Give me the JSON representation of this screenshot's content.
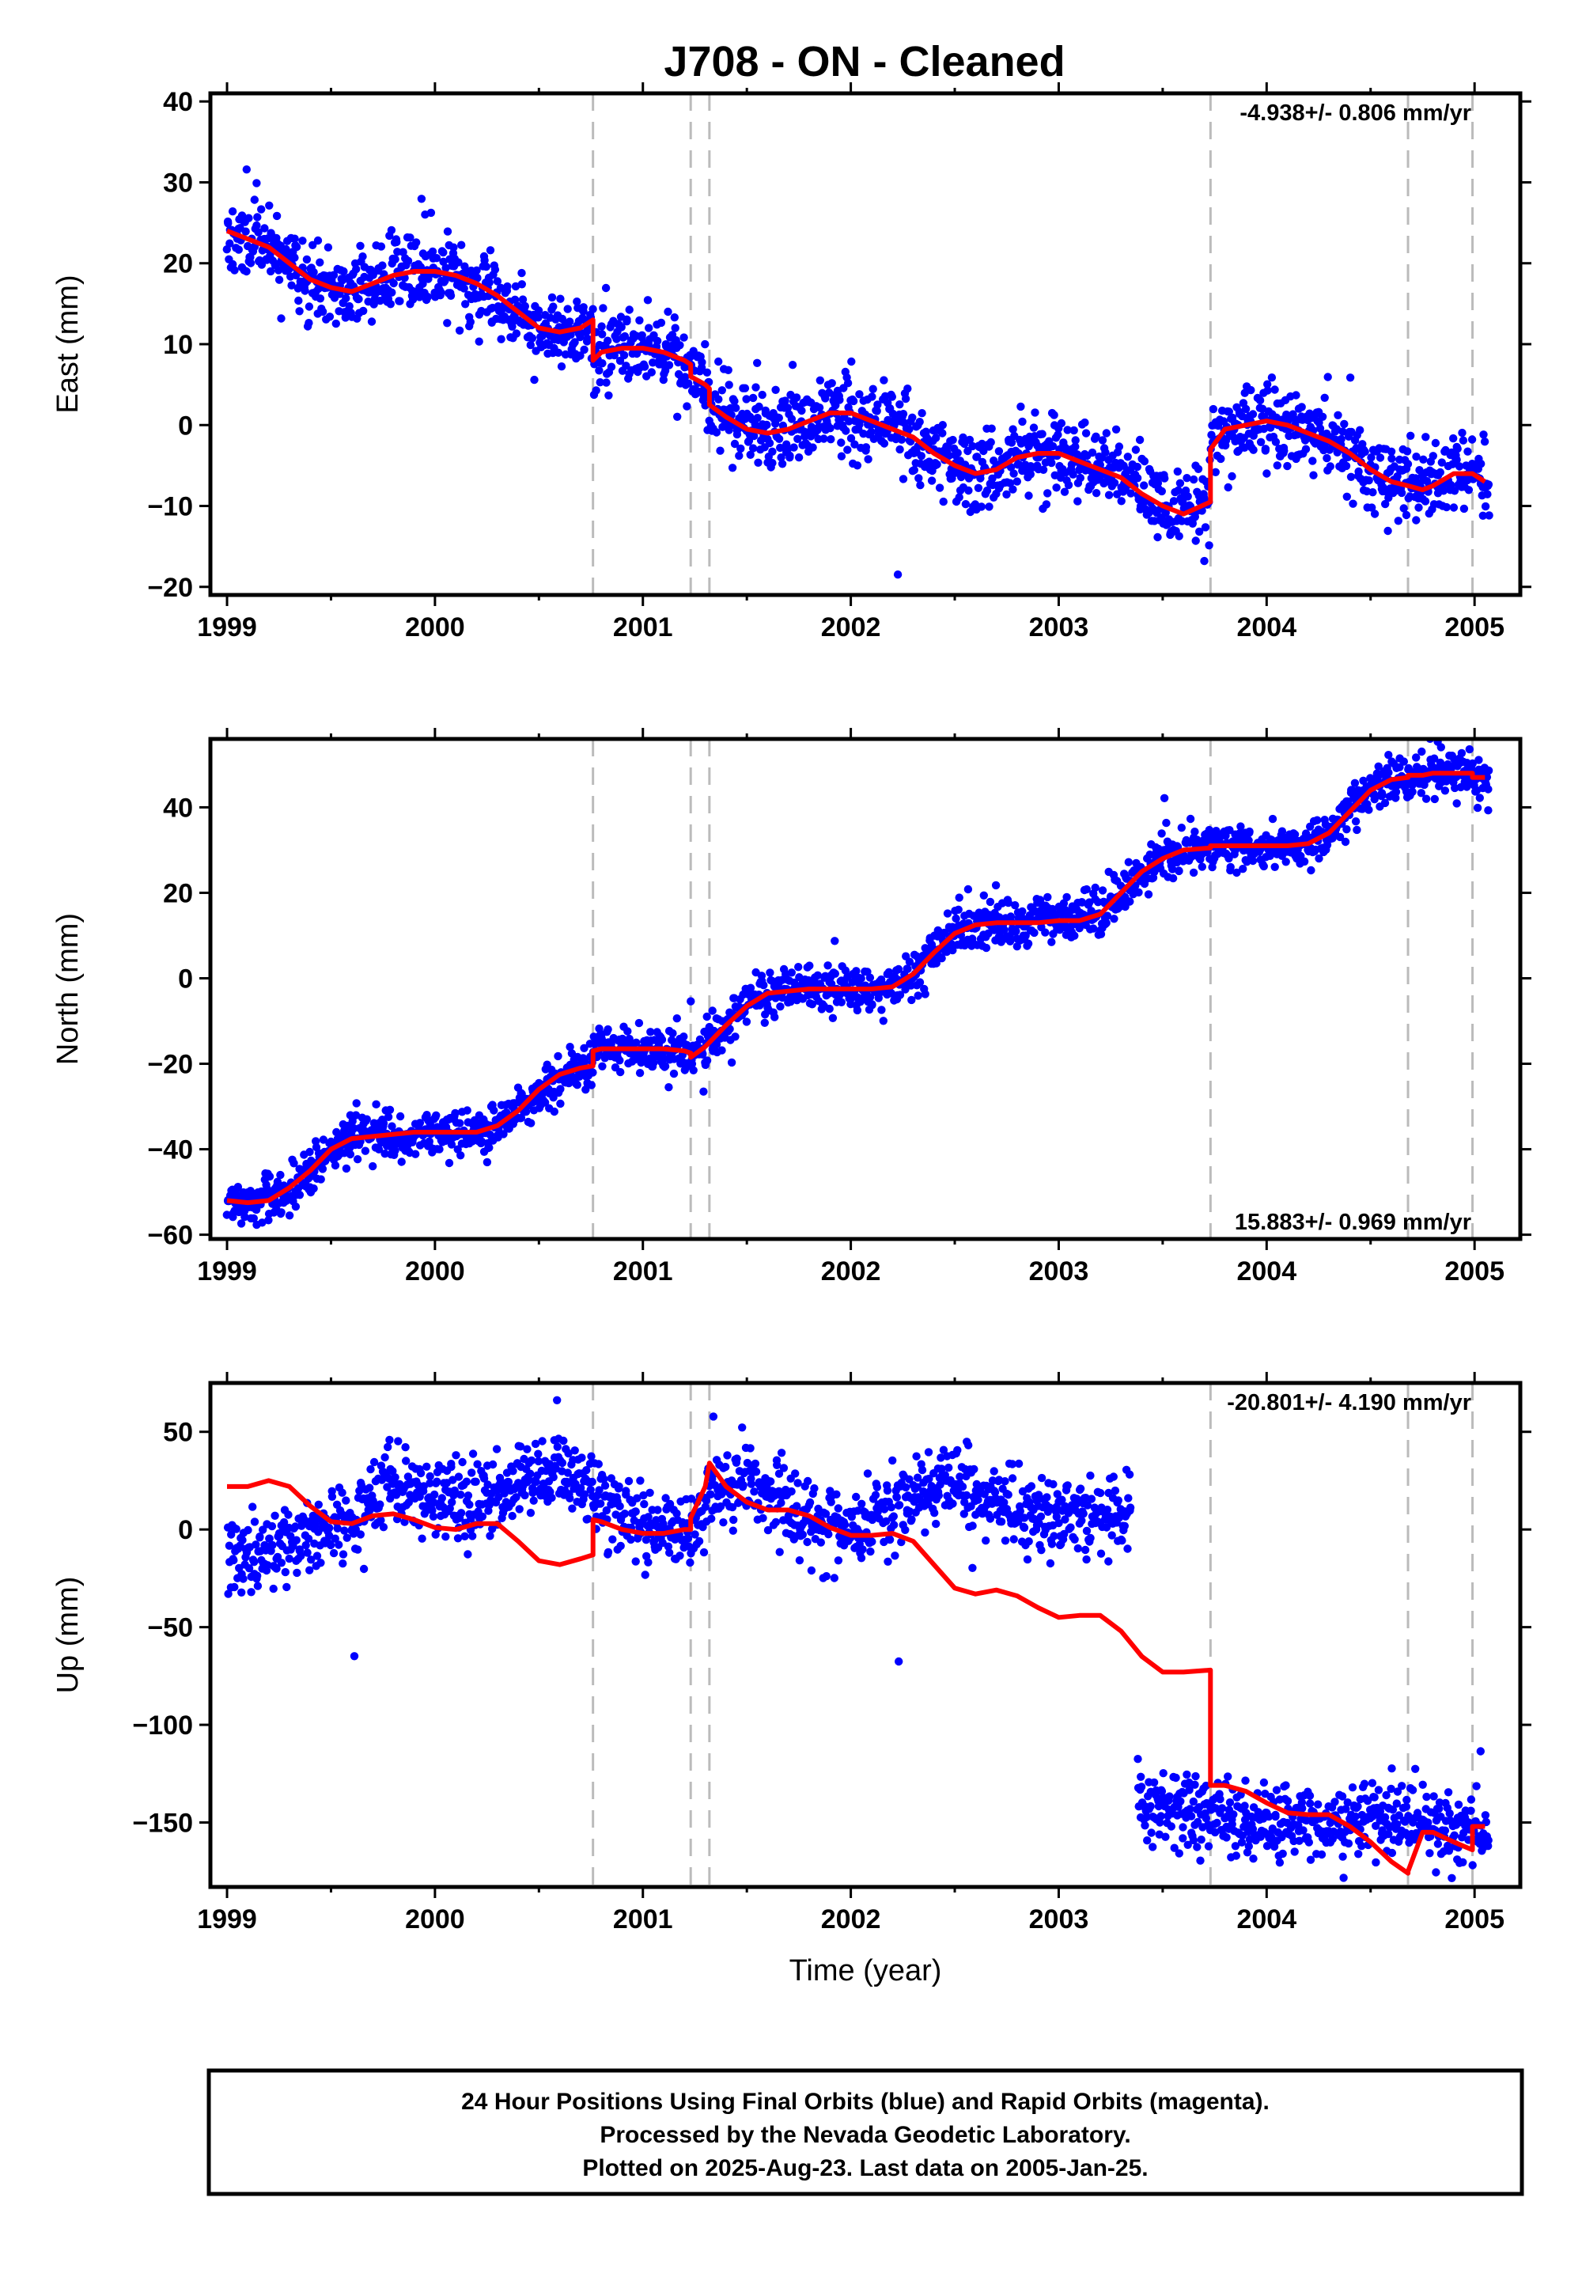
{
  "title": "J708  - ON - Cleaned",
  "colors": {
    "points": "#0000ff",
    "model": "#ff0000",
    "events": "#bbbbbb",
    "frame": "#000000"
  },
  "footer": {
    "lines": [
      "24 Hour Positions Using Final Orbits (blue) and Rapid Orbits (magenta).",
      "Processed by the Nevada Geodetic Laboratory.",
      "Plotted on 2025-Aug-23. Last data on 2005-Jan-25."
    ]
  },
  "chart_data": [
    {
      "type": "scatter",
      "panel": "east",
      "ylabel": "East (mm)",
      "xlabel": "",
      "xlim": [
        1998.92,
        2005.22
      ],
      "ylim": [
        -21,
        41
      ],
      "xticks": [
        1999,
        2000,
        2001,
        2002,
        2003,
        2004,
        2005
      ],
      "yticks": [
        -20,
        -10,
        0,
        10,
        20,
        30,
        40
      ],
      "rate_text": "-4.938+/- 0.806 mm/yr",
      "rate_position": "top-right",
      "events": [
        2000.76,
        2001.23,
        2001.32,
        2003.73,
        2004.68,
        2004.99
      ],
      "gap": null,
      "model": {
        "x": [
          1999.0,
          1999.1,
          1999.2,
          1999.3,
          1999.4,
          1999.5,
          1999.6,
          1999.7,
          1999.8,
          1999.9,
          2000.0,
          2000.1,
          2000.2,
          2000.3,
          2000.4,
          2000.5,
          2000.6,
          2000.7,
          2000.76,
          2000.76,
          2000.8,
          2000.9,
          2001.0,
          2001.1,
          2001.2,
          2001.23,
          2001.23,
          2001.3,
          2001.32,
          2001.32,
          2001.4,
          2001.5,
          2001.6,
          2001.7,
          2001.8,
          2001.9,
          2002.0,
          2002.1,
          2002.2,
          2002.3,
          2002.4,
          2002.5,
          2002.6,
          2002.7,
          2002.8,
          2002.9,
          2003.0,
          2003.1,
          2003.2,
          2003.3,
          2003.4,
          2003.5,
          2003.6,
          2003.73,
          2003.73,
          2003.8,
          2003.9,
          2004.0,
          2004.1,
          2004.2,
          2004.3,
          2004.4,
          2004.5,
          2004.6,
          2004.68,
          2004.68,
          2004.75,
          2004.8,
          2004.9,
          2004.99,
          2004.99,
          2005.05
        ],
        "y": [
          24,
          23,
          22,
          20,
          18,
          17,
          16.5,
          17.5,
          18.5,
          19,
          19,
          18.5,
          17.5,
          16,
          14,
          12,
          11.5,
          12,
          13,
          8,
          9,
          9.5,
          9.5,
          9,
          8,
          7.5,
          6,
          5,
          4.5,
          2.5,
          1,
          -0.5,
          -1,
          -0.5,
          0.5,
          1.5,
          1.5,
          0.5,
          -0.5,
          -1.5,
          -3.5,
          -5,
          -6,
          -5.5,
          -4,
          -3.5,
          -3.5,
          -4.5,
          -5.5,
          -6.5,
          -8.5,
          -10,
          -11,
          -9.5,
          -3,
          -0.5,
          0,
          0.5,
          0,
          -1,
          -2,
          -3.5,
          -5.5,
          -7,
          -7.5,
          -7.5,
          -8,
          -7.5,
          -6,
          -6,
          -6,
          -7
        ],
        "amp": 0,
        "noise": 0
      },
      "scatter": {
        "x_start": 1999.0,
        "x_end": 2005.07,
        "noise": 2.4,
        "count": 1900,
        "seed": 11
      }
    },
    {
      "type": "scatter",
      "panel": "north",
      "ylabel": "North (mm)",
      "xlabel": "",
      "xlim": [
        1998.92,
        2005.22
      ],
      "ylim": [
        -61,
        56
      ],
      "xticks": [
        1999,
        2000,
        2001,
        2002,
        2003,
        2004,
        2005
      ],
      "yticks": [
        -60,
        -40,
        -20,
        0,
        20,
        40
      ],
      "rate_text": "15.883+/- 0.969 mm/yr",
      "rate_position": "bottom-right",
      "events": [
        2000.76,
        2001.23,
        2001.32,
        2003.73,
        2004.68,
        2004.99
      ],
      "gap": null,
      "model": {
        "x": [
          1999.0,
          1999.1,
          1999.2,
          1999.3,
          1999.4,
          1999.5,
          1999.6,
          1999.7,
          1999.8,
          1999.9,
          2000.0,
          2000.1,
          2000.2,
          2000.3,
          2000.4,
          2000.5,
          2000.6,
          2000.7,
          2000.76,
          2000.76,
          2000.8,
          2000.9,
          2001.0,
          2001.1,
          2001.2,
          2001.23,
          2001.23,
          2001.3,
          2001.32,
          2001.32,
          2001.4,
          2001.5,
          2001.6,
          2001.7,
          2001.8,
          2001.9,
          2002.0,
          2002.1,
          2002.2,
          2002.3,
          2002.4,
          2002.5,
          2002.6,
          2002.7,
          2002.8,
          2002.9,
          2003.0,
          2003.1,
          2003.2,
          2003.3,
          2003.4,
          2003.5,
          2003.6,
          2003.73,
          2003.73,
          2003.8,
          2003.9,
          2004.0,
          2004.1,
          2004.2,
          2004.3,
          2004.4,
          2004.5,
          2004.6,
          2004.68,
          2004.68,
          2004.75,
          2004.8,
          2004.9,
          2004.99,
          2004.99,
          2005.05
        ],
        "y": [
          -52,
          -52.5,
          -52,
          -49,
          -45,
          -40,
          -37.5,
          -37,
          -36.5,
          -36,
          -36,
          -36,
          -36,
          -34.5,
          -31,
          -26,
          -22.5,
          -21,
          -20.5,
          -17,
          -16.5,
          -16.5,
          -16.5,
          -16.5,
          -17,
          -17.5,
          -18.5,
          -16,
          -15,
          -15,
          -11,
          -6.5,
          -3.5,
          -3,
          -2.5,
          -2.5,
          -2.5,
          -2.5,
          -2,
          1,
          6,
          10.5,
          12.5,
          13,
          13,
          13,
          13.5,
          13.5,
          15,
          20,
          25,
          28,
          30,
          30.5,
          31,
          31,
          31,
          31,
          31,
          31.5,
          34,
          39,
          44,
          46.5,
          47,
          47.5,
          47.5,
          48,
          48,
          48,
          47,
          47
        ],
        "amp": 0,
        "noise": 0
      },
      "scatter": {
        "x_start": 1999.0,
        "x_end": 2005.07,
        "noise": 2.6,
        "count": 1900,
        "seed": 23
      }
    },
    {
      "type": "scatter",
      "panel": "up",
      "ylabel": "Up (mm)",
      "xlabel": "Time (year)",
      "xlim": [
        1998.92,
        2005.22
      ],
      "ylim": [
        -183,
        75
      ],
      "xticks": [
        1999,
        2000,
        2001,
        2002,
        2003,
        2004,
        2005
      ],
      "yticks": [
        -150,
        -100,
        -50,
        0,
        50
      ],
      "rate_text": "-20.801+/- 4.190 mm/yr",
      "rate_position": "top-right",
      "events": [
        2000.76,
        2001.23,
        2001.32,
        2003.73,
        2004.68,
        2004.99
      ],
      "gap": [
        2003.35,
        2003.38
      ],
      "model": {
        "x": [
          1999.0,
          1999.1,
          1999.2,
          1999.3,
          1999.4,
          1999.5,
          1999.6,
          1999.7,
          1999.8,
          1999.9,
          2000.0,
          2000.1,
          2000.2,
          2000.3,
          2000.4,
          2000.5,
          2000.6,
          2000.7,
          2000.76,
          2000.76,
          2000.8,
          2000.9,
          2001.0,
          2001.1,
          2001.2,
          2001.23,
          2001.23,
          2001.3,
          2001.32,
          2001.32,
          2001.4,
          2001.5,
          2001.6,
          2001.7,
          2001.8,
          2001.9,
          2002.0,
          2002.1,
          2002.2,
          2002.3,
          2002.4,
          2002.5,
          2002.6,
          2002.7,
          2002.8,
          2002.9,
          2003.0,
          2003.1,
          2003.2,
          2003.3,
          2003.4,
          2003.5,
          2003.6,
          2003.73,
          2003.73,
          2003.8,
          2003.9,
          2004.0,
          2004.1,
          2004.2,
          2004.3,
          2004.4,
          2004.5,
          2004.6,
          2004.68,
          2004.68,
          2004.75,
          2004.8,
          2004.9,
          2004.99,
          2004.99,
          2005.05
        ],
        "y": [
          22,
          22,
          25,
          22,
          12,
          4,
          3,
          7,
          8,
          5,
          1,
          0,
          3,
          3,
          -6,
          -16,
          -18,
          -15,
          -13,
          5,
          4,
          0,
          -2,
          -2,
          0,
          0,
          6,
          22,
          34,
          34,
          22,
          14,
          10,
          10,
          7,
          1,
          -3,
          -3,
          -2,
          -6,
          -18,
          -30,
          -33,
          -31,
          -34,
          -40,
          -45,
          -44,
          -44,
          -52,
          -65,
          -73,
          -73,
          -72,
          -131,
          -131,
          -134,
          -140,
          -145,
          -146,
          -146,
          -152,
          -160,
          -170,
          -176,
          -175,
          -155,
          -155,
          -160,
          -164,
          -152,
          -152
        ],
        "amp": 0,
        "noise": 0
      },
      "scatter": {
        "x_start": 1999.0,
        "x_end": 2005.07,
        "noise": 10,
        "count": 1800,
        "seed": 37,
        "segments": [
          {
            "from": 1999.0,
            "to": 2003.35,
            "offset_pts": [
              [
                1999.0,
                -18
              ],
              [
                1999.3,
                -5
              ],
              [
                1999.6,
                5
              ],
              [
                1999.8,
                25
              ],
              [
                2000.0,
                15
              ],
              [
                2000.3,
                18
              ],
              [
                2000.5,
                30
              ],
              [
                2000.7,
                25
              ],
              [
                2000.76,
                20
              ],
              [
                2000.9,
                5
              ],
              [
                2001.2,
                -5
              ],
              [
                2001.32,
                15
              ],
              [
                2001.45,
                25
              ],
              [
                2001.6,
                18
              ],
              [
                2001.8,
                5
              ],
              [
                2002.0,
                0
              ],
              [
                2002.2,
                8
              ],
              [
                2002.5,
                25
              ],
              [
                2002.7,
                15
              ],
              [
                2003.0,
                5
              ],
              [
                2003.35,
                10
              ]
            ]
          },
          {
            "from": 2003.38,
            "to": 2005.07,
            "offset_pts": [
              [
                2003.38,
                -140
              ],
              [
                2003.6,
                -145
              ],
              [
                2003.9,
                -150
              ],
              [
                2004.2,
                -150
              ],
              [
                2004.5,
                -148
              ],
              [
                2004.8,
                -152
              ],
              [
                2005.07,
                -155
              ]
            ]
          }
        ]
      }
    }
  ]
}
